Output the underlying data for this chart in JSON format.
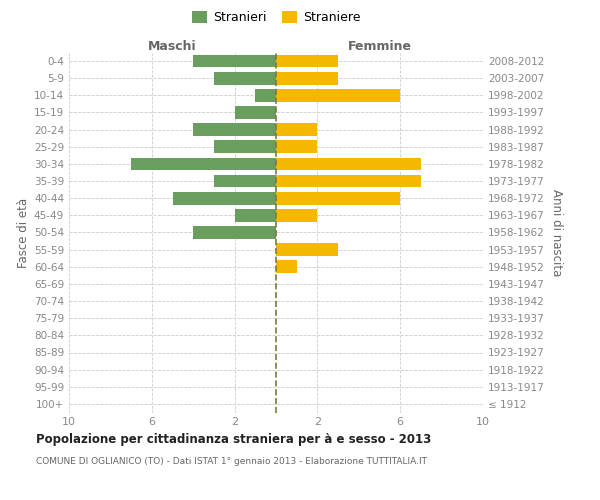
{
  "age_groups": [
    "0-4",
    "5-9",
    "10-14",
    "15-19",
    "20-24",
    "25-29",
    "30-34",
    "35-39",
    "40-44",
    "45-49",
    "50-54",
    "55-59",
    "60-64",
    "65-69",
    "70-74",
    "75-79",
    "80-84",
    "85-89",
    "90-94",
    "95-99",
    "100+"
  ],
  "year_labels": [
    "2008-2012",
    "2003-2007",
    "1998-2002",
    "1993-1997",
    "1988-1992",
    "1983-1987",
    "1978-1982",
    "1973-1977",
    "1968-1972",
    "1963-1967",
    "1958-1962",
    "1953-1957",
    "1948-1952",
    "1943-1947",
    "1938-1942",
    "1933-1937",
    "1928-1932",
    "1923-1927",
    "1918-1922",
    "1913-1917",
    "≤ 1912"
  ],
  "males": [
    4,
    3,
    1,
    2,
    4,
    3,
    7,
    3,
    5,
    2,
    4,
    0,
    0,
    0,
    0,
    0,
    0,
    0,
    0,
    0,
    0
  ],
  "females": [
    3,
    3,
    6,
    0,
    2,
    2,
    7,
    7,
    6,
    2,
    0,
    3,
    1,
    0,
    0,
    0,
    0,
    0,
    0,
    0,
    0
  ],
  "male_color": "#6a9e5e",
  "female_color": "#f5b800",
  "center_line_color": "#7a7a40",
  "grid_color": "#cccccc",
  "bg_color": "#ffffff",
  "title": "Popolazione per cittadinanza straniera per à e sesso - 2013",
  "subtitle": "COMUNE DI OGLIANICO (TO) - Dati ISTAT 1° gennaio 2013 - Elaborazione TUTTITALIA.IT",
  "ylabel_left": "Fasce di età",
  "ylabel_right": "Anni di nascita",
  "legend_male": "Stranieri",
  "legend_female": "Straniere",
  "header_left": "Maschi",
  "header_right": "Femmine",
  "xlim": 10,
  "bar_height": 0.75
}
